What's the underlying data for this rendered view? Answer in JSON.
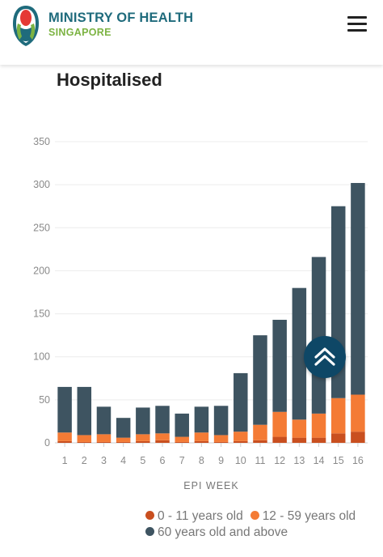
{
  "header": {
    "brand_name": "MINISTRY OF HEALTH",
    "brand_sub": "SINGAPORE",
    "logo_icon": "moh-logo",
    "menu_icon": "hamburger-menu-icon",
    "colors": {
      "brand_name": "#1f6b7c",
      "brand_sub": "#7cb342"
    }
  },
  "page": {
    "title": "Hospitalised"
  },
  "back_to_top": {
    "icon": "chevron-double-up-icon",
    "color": "#0e4766"
  },
  "chart_data": {
    "type": "bar",
    "stacked": true,
    "categories": [
      "1",
      "2",
      "3",
      "4",
      "5",
      "6",
      "7",
      "8",
      "9",
      "10",
      "11",
      "12",
      "13",
      "14",
      "15",
      "16"
    ],
    "series": [
      {
        "name": "0 - 11 years old",
        "color": "#c94f1f",
        "values": [
          2,
          1,
          1,
          1,
          2,
          3,
          1,
          2,
          1,
          2,
          3,
          7,
          6,
          6,
          11,
          13
        ]
      },
      {
        "name": "12 - 59 years old",
        "color": "#f47b35",
        "values": [
          10,
          8,
          9,
          5,
          8,
          8,
          6,
          10,
          8,
          11,
          18,
          29,
          21,
          28,
          41,
          43
        ]
      },
      {
        "name": "60 years old and above",
        "color": "#3e5461",
        "values": [
          53,
          56,
          32,
          23,
          31,
          32,
          27,
          30,
          34,
          68,
          104,
          107,
          153,
          182,
          223,
          246
        ]
      }
    ],
    "xlabel": "EPI WEEK",
    "ylabel": "",
    "ylim": [
      0,
      350
    ],
    "yticks": [
      0,
      50,
      100,
      150,
      200,
      250,
      300,
      350
    ],
    "grid": true,
    "legend_position": "bottom-right"
  }
}
